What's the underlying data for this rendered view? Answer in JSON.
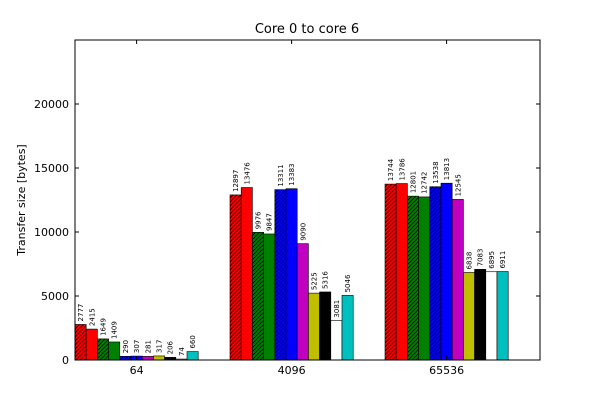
{
  "chart_data": {
    "type": "bar",
    "title": "Core 0 to core 6",
    "xlabel": "",
    "ylabel": "Transfer size [bytes]",
    "ylim": [
      0,
      25000
    ],
    "yticks": [
      0,
      5000,
      10000,
      15000,
      20000
    ],
    "categories": [
      "64",
      "4096",
      "65536"
    ],
    "legend": "none",
    "grid": false,
    "series": [
      {
        "color": "#ff0000",
        "hatch": true,
        "values": [
          2777,
          12897,
          13744
        ]
      },
      {
        "color": "#ff0000",
        "hatch": false,
        "values": [
          2415,
          13476,
          13786
        ]
      },
      {
        "color": "#008000",
        "hatch": true,
        "values": [
          1649,
          9976,
          12801
        ]
      },
      {
        "color": "#008000",
        "hatch": false,
        "values": [
          1409,
          9847,
          12742
        ]
      },
      {
        "color": "#0000ff",
        "hatch": true,
        "values": [
          290,
          13311,
          13538
        ]
      },
      {
        "color": "#0000ff",
        "hatch": false,
        "values": [
          307,
          13383,
          13813
        ]
      },
      {
        "color": "#bf00bf",
        "hatch": false,
        "values": [
          281,
          9090,
          12545
        ]
      },
      {
        "color": "#bfbf00",
        "hatch": false,
        "values": [
          317,
          5225,
          6838
        ]
      },
      {
        "color": "#000000",
        "hatch": false,
        "values": [
          206,
          5316,
          7083
        ]
      },
      {
        "color": "#ffffff",
        "hatch": false,
        "values": [
          74,
          3081,
          6895
        ]
      },
      {
        "color": "#00bfbf",
        "hatch": false,
        "values": [
          660,
          5046,
          6911
        ]
      }
    ]
  }
}
